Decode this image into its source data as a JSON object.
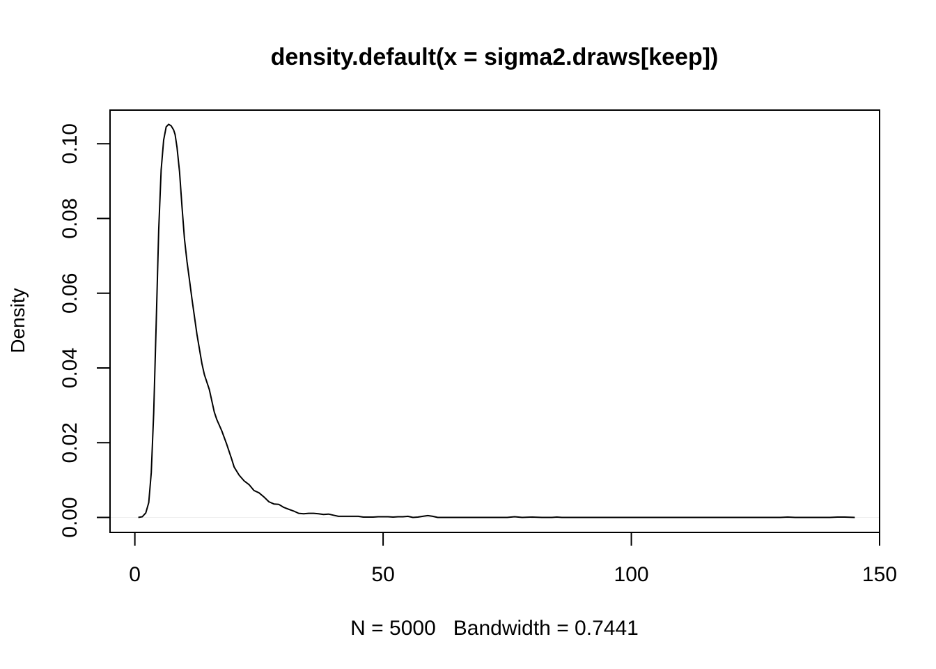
{
  "chart_data": {
    "type": "line",
    "title": "density.default(x = sigma2.draws[keep])",
    "xlabel": "N = 5000   Bandwidth = 0.7441",
    "ylabel": "Density",
    "xlim": [
      -5,
      150
    ],
    "ylim": [
      -0.004,
      0.109
    ],
    "x_ticks": [
      0,
      50,
      100,
      150
    ],
    "x_tick_labels": [
      "0",
      "50",
      "100",
      "150"
    ],
    "y_ticks": [
      0.0,
      0.02,
      0.04,
      0.06,
      0.08,
      0.1
    ],
    "y_tick_labels": [
      "0.00",
      "0.02",
      "0.04",
      "0.06",
      "0.08",
      "0.10"
    ],
    "grid": false,
    "series": [
      {
        "x": [
          0.7,
          1.5,
          2.2,
          2.8,
          3.3,
          3.8,
          4.3,
          4.8,
          5.3,
          5.8,
          6.3,
          6.8,
          7.3,
          7.8,
          8.1,
          8.5,
          9.0,
          9.5,
          10.0,
          10.5,
          11.0,
          11.5,
          12.5,
          13.5,
          14.0,
          15.0,
          16.0,
          16.5,
          17.5,
          18.5,
          19.5,
          20.0,
          21.0,
          22.0,
          23.0,
          24.0,
          25.0,
          26.0,
          27.0,
          28.0,
          29.0,
          30.0,
          31.0,
          32.0,
          33.0,
          34.0,
          35.0,
          36.0,
          37.0,
          38.0,
          39.0,
          40.0,
          41.0,
          42.0,
          43.0,
          44.0,
          45.0,
          46.0,
          47.0,
          48.0,
          49.0,
          50.0,
          51.0,
          52.0,
          53.0,
          54.0,
          55.0,
          56.0,
          57.0,
          58.0,
          59.0,
          60.0,
          61.0,
          62.0,
          64.0,
          68.0,
          72.0,
          75.0,
          76.5,
          78.0,
          80.0,
          82.0,
          84.0,
          85.0,
          86.0,
          90.0,
          100.0,
          110.0,
          120.0,
          130.0,
          131.5,
          133.0,
          135.0,
          140.0,
          141.5,
          143.0,
          145.0
        ],
        "y": [
          0.0,
          0.0002,
          0.0012,
          0.004,
          0.012,
          0.028,
          0.052,
          0.077,
          0.093,
          0.101,
          0.1045,
          0.1052,
          0.1048,
          0.1037,
          0.1025,
          0.099,
          0.0925,
          0.083,
          0.0745,
          0.0685,
          0.0635,
          0.0585,
          0.049,
          0.0412,
          0.0382,
          0.0342,
          0.0282,
          0.0262,
          0.0232,
          0.0196,
          0.0156,
          0.0135,
          0.0113,
          0.0098,
          0.0088,
          0.0072,
          0.0066,
          0.0055,
          0.0042,
          0.0036,
          0.0035,
          0.0027,
          0.0022,
          0.0017,
          0.0011,
          0.001,
          0.0011,
          0.0011,
          0.001,
          0.0008,
          0.0009,
          0.0006,
          0.0003,
          0.0003,
          0.0003,
          0.0003,
          0.0003,
          0.0001,
          0.0001,
          0.0001,
          0.0002,
          0.0002,
          0.0002,
          0.0001,
          0.0002,
          0.0002,
          0.0003,
          0.0,
          0.0001,
          0.0003,
          0.0005,
          0.0003,
          0.0,
          0.0,
          0.0,
          0.0,
          0.0,
          0.0,
          0.0002,
          0.0,
          0.0001,
          0.0,
          0.0,
          0.0001,
          0.0,
          0.0,
          0.0,
          0.0,
          0.0,
          0.0,
          0.0001,
          0.0,
          0.0,
          0.0,
          0.0001,
          0.0001,
          0.0
        ]
      }
    ]
  },
  "colors": {
    "line": "#000000",
    "axis": "#000000",
    "background": "#ffffff",
    "zero_line": "#eeeeee"
  }
}
